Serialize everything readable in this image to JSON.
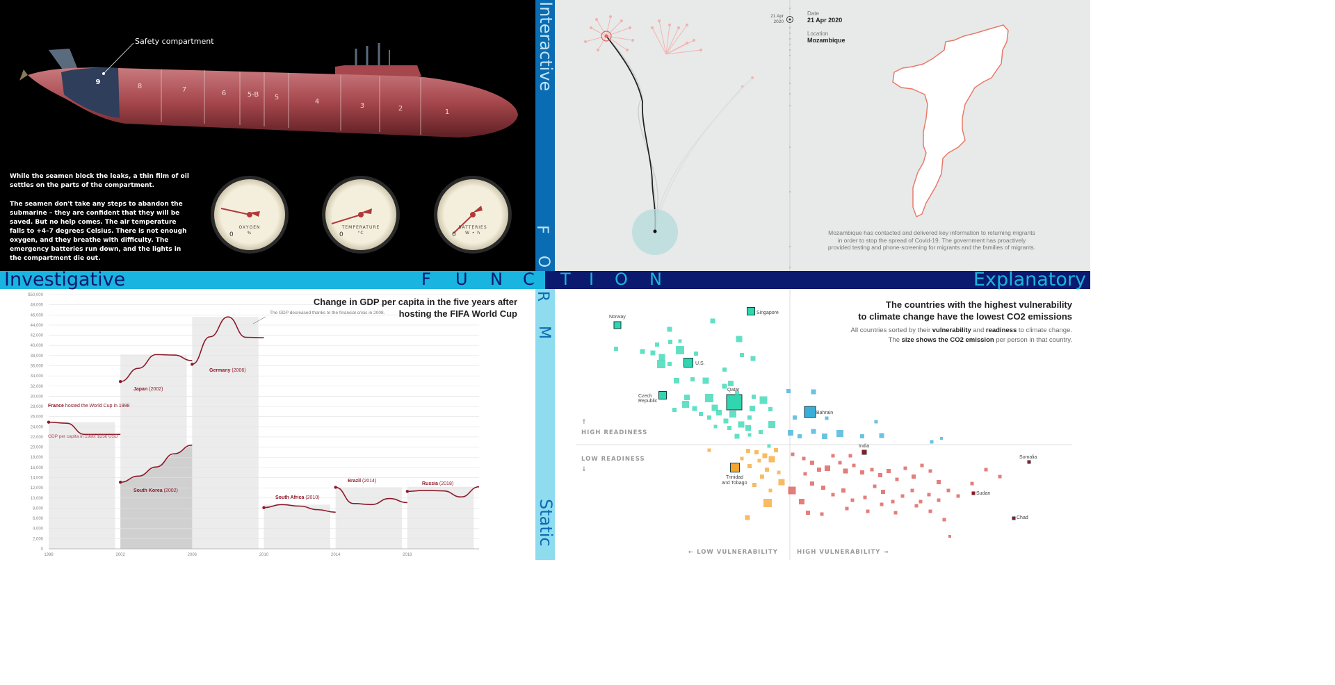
{
  "bands": {
    "investigative": "Investigative",
    "explanatory": "Explanatory",
    "interactive": "Interactive",
    "static": "Static",
    "function_letters": [
      "F",
      "U",
      "N",
      "C",
      "T",
      "I",
      "O",
      "N"
    ],
    "form_letters": [
      "F",
      "O",
      "R",
      "M"
    ]
  },
  "submarine": {
    "callout": "Safety compartment",
    "compartments": [
      "9",
      "8",
      "7",
      "6",
      "5-B",
      "5",
      "4",
      "3",
      "2",
      "1"
    ],
    "paragraph1": "While the seamen block the leaks, a thin film of oil settles on the parts of the compartment.",
    "paragraph2": "The seamen don't take any steps to abandon the submarine – they are confident that they will be saved. But no help comes. The air temperature falls to +4–7 degrees Celsius. There is not enough oxygen, and they breathe with difficulty. The emergency batteries run down, and the lights in the compartment die out.",
    "gauges": [
      {
        "label": "OXYGEN",
        "unit": "%",
        "zero": "0"
      },
      {
        "label": "TEMPERATURE",
        "unit": "°C",
        "zero": "0"
      },
      {
        "label": "BATTERIES",
        "unit": "W • h",
        "zero": "0"
      }
    ]
  },
  "migration": {
    "timeline_label": "21 Apr\n2020",
    "date_label": "Date",
    "date_value": "21 Apr 2020",
    "location_label": "Location",
    "location_value": "Mozambique",
    "caption": "Mozambique has contacted and delivered key information to returning migrants in order to stop the spread of Covid-19. The government has proactively provided testing and phone-screening for migrants and the families of migrants."
  },
  "gdp": {
    "title": "Change in GDP per capita in the five years after hosting the FIFA World Cup",
    "chart_data": {
      "type": "line",
      "title": "Change in GDP per capita in the five years after hosting the FIFA World Cup",
      "ylim": [
        0,
        50000
      ],
      "yticks": [
        "0",
        "2,000",
        "4,000",
        "6,000",
        "8,000",
        "10,000",
        "12,000",
        "14,000",
        "16,000",
        "18,000",
        "20,000",
        "22,000",
        "24,000",
        "26,000",
        "28,000",
        "30,000",
        "32,000",
        "34,000",
        "36,000",
        "38,000",
        "40,000",
        "42,000",
        "44,000",
        "46,000",
        "48,000",
        "$50,000"
      ],
      "xticks": [
        "1998",
        "2002",
        "2006",
        "2010",
        "2014",
        "2018"
      ],
      "series": [
        {
          "name": "France",
          "year": "1998",
          "x": [
            1998,
            1999,
            2000,
            2001,
            2002,
            2003
          ],
          "values": [
            24900,
            24700,
            22500,
            22500,
            22500,
            24300
          ]
        },
        {
          "name": "Japan",
          "year": "2002",
          "x": [
            2002,
            2003,
            2004,
            2005,
            2006,
            2007
          ],
          "values": [
            32900,
            35500,
            38200,
            38100,
            37000,
            36300
          ]
        },
        {
          "name": "South Korea",
          "year": "2002",
          "x": [
            2002,
            2003,
            2004,
            2005,
            2006,
            2007
          ],
          "values": [
            13100,
            14300,
            16100,
            18700,
            20400,
            21700
          ]
        },
        {
          "name": "Germany",
          "year": "2006",
          "x": [
            2006,
            2007,
            2008,
            2009,
            2010,
            2011
          ],
          "values": [
            36300,
            41700,
            45600,
            41600,
            41500,
            41500
          ]
        },
        {
          "name": "South Africa",
          "year": "2010",
          "x": [
            2010,
            2011,
            2012,
            2013,
            2014,
            2015
          ],
          "values": [
            8100,
            8700,
            8400,
            7700,
            7200,
            6900
          ]
        },
        {
          "name": "Brazil",
          "year": "2014",
          "x": [
            2014,
            2015,
            2016,
            2017,
            2018,
            2019
          ],
          "values": [
            12100,
            8900,
            8700,
            9900,
            9100,
            9200
          ]
        },
        {
          "name": "Russia",
          "year": "2018",
          "x": [
            2018,
            2019,
            2020,
            2021,
            2022,
            2023
          ],
          "values": [
            11300,
            11500,
            11400,
            10200,
            12200,
            12200
          ]
        }
      ],
      "annotations": {
        "france": "hosted the World Cup in 1998",
        "gdp_note": "GDP per capita in 1998: $25k USD",
        "germany_note": "The GDP decreased thanks to the financial crisis in 2008."
      }
    }
  },
  "climate": {
    "title_line1": "The countries with the highest vulnerability",
    "title_line2": "to climate change have the lowest CO2 emissions",
    "sub_pre": "All countries sorted by their",
    "sub_b1": "vulnerability",
    "sub_mid": "and",
    "sub_b2": "readiness",
    "sub_post": "to climate change.",
    "sub2_pre": "The",
    "sub2_b": "size shows the CO2 emission",
    "sub2_post": "per person in that country.",
    "high_readiness": "HIGH READINESS",
    "low_readiness": "LOW READINESS",
    "low_vulnerability": "← LOW VULNERABILITY",
    "high_vulnerability": "HIGH VULNERABILITY →",
    "countries": [
      "Norway",
      "Singapore",
      "U.S.",
      "Czech Republic",
      "Qatar",
      "Bahrain",
      "India",
      "Trinidad and Tobago",
      "Somalia",
      "Sudan",
      "Chad"
    ],
    "colors": {
      "teal": "#2fd6b0",
      "blue": "#3aaed8",
      "orange": "#f5a430",
      "red": "#d9534f"
    }
  }
}
